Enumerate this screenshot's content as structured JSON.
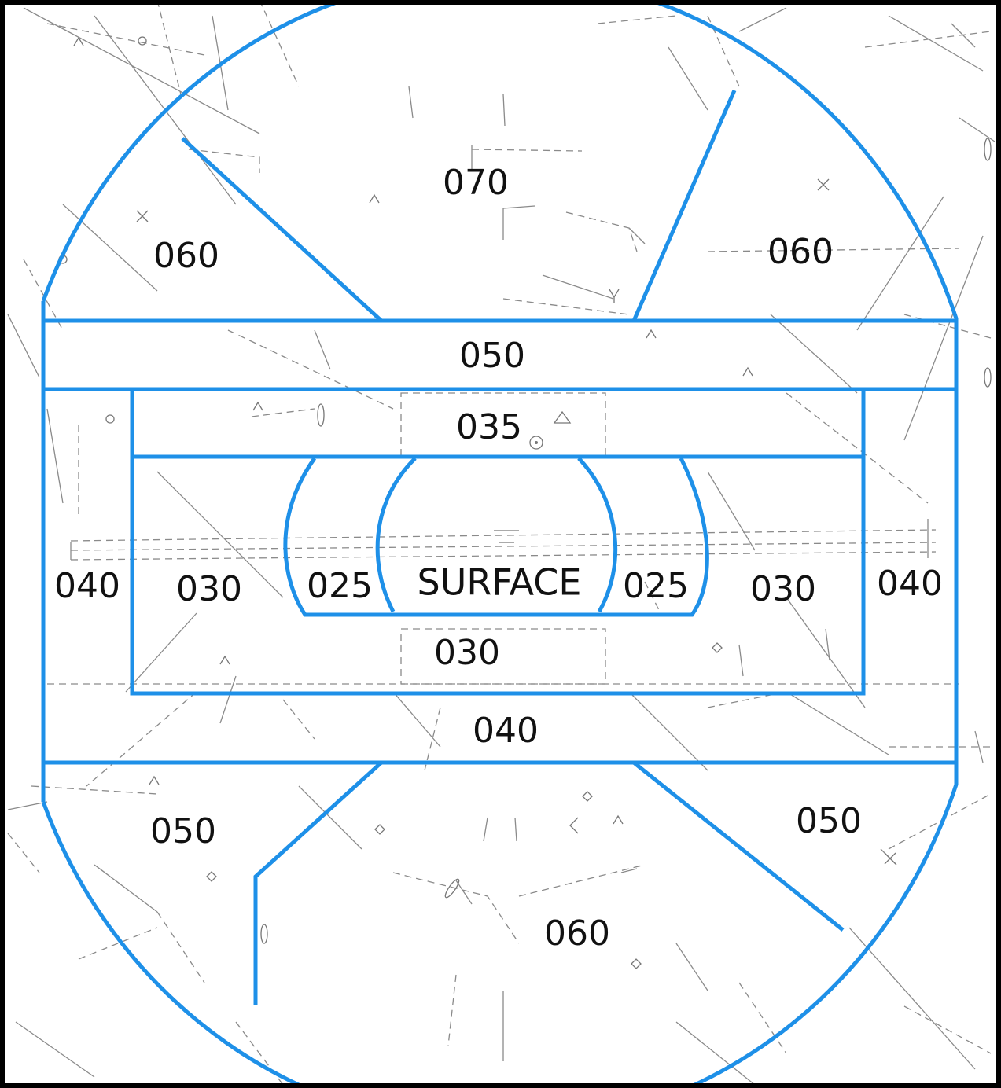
{
  "chart": {
    "sector_color": "#1e90e8",
    "frame_color": "#000000",
    "background_line_color": "#8a8a8a"
  },
  "sectors": {
    "north": "070",
    "northwest": "060",
    "northeast": "060",
    "upper_band": "050",
    "inner_upper_band": "035",
    "west_outer": "040",
    "west_inner": "030",
    "west_arc": "025",
    "center": "SURFACE",
    "east_arc": "025",
    "east_inner": "030",
    "east_outer": "040",
    "south_inner": "030",
    "lower_band": "040",
    "southwest": "050",
    "southeast": "050",
    "south": "060"
  }
}
